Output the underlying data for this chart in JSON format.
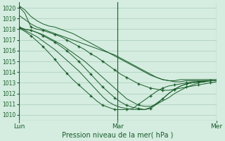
{
  "bg_color": "#d4ede0",
  "grid_color": "#a8cbb8",
  "line_color": "#1a5c2a",
  "marker_color": "#1a5c2a",
  "xlabel": "Pression niveau de la mer( hPa )",
  "xtick_labels": [
    "Lun",
    "Mar",
    "Mer"
  ],
  "xtick_positions": [
    0,
    24,
    48
  ],
  "ylim": [
    1009.5,
    1020.5
  ],
  "yticks": [
    1010,
    1011,
    1012,
    1013,
    1014,
    1015,
    1016,
    1017,
    1018,
    1019,
    1020
  ],
  "series": [
    [
      1020.2,
      1019.8,
      1019.2,
      1018.8,
      1018.5,
      1018.3,
      1018.2,
      1018.0,
      1017.8,
      1017.6,
      1017.3,
      1017.0,
      1016.7,
      1016.4,
      1016.1,
      1015.8,
      1015.5,
      1015.2,
      1014.9,
      1014.6,
      1014.3,
      1014.0,
      1013.7,
      1013.5,
      1013.3,
      1013.2,
      1013.2,
      1013.3,
      1013.3,
      1013.3,
      1013.3,
      1013.3,
      1013.3,
      1013.3
    ],
    [
      1019.3,
      1018.9,
      1018.5,
      1018.2,
      1018.0,
      1017.8,
      1017.6,
      1017.4,
      1017.2,
      1017.0,
      1016.8,
      1016.6,
      1016.4,
      1016.2,
      1016.0,
      1015.8,
      1015.6,
      1015.3,
      1015.0,
      1014.7,
      1014.4,
      1014.1,
      1013.8,
      1013.5,
      1013.3,
      1013.2,
      1013.1,
      1013.1,
      1013.2,
      1013.2,
      1013.2,
      1013.2,
      1013.2,
      1013.2
    ],
    [
      1020.1,
      1019.5,
      1018.2,
      1018.0,
      1017.9,
      1017.7,
      1017.5,
      1017.3,
      1017.0,
      1016.7,
      1016.4,
      1016.1,
      1015.7,
      1015.4,
      1015.0,
      1014.6,
      1014.2,
      1013.8,
      1013.5,
      1013.2,
      1012.9,
      1012.7,
      1012.5,
      1012.4,
      1012.3,
      1012.3,
      1012.4,
      1012.5,
      1012.6,
      1012.7,
      1012.8,
      1012.9,
      1013.0,
      1013.1
    ],
    [
      1018.2,
      1018.0,
      1017.9,
      1017.7,
      1017.5,
      1017.2,
      1016.9,
      1016.6,
      1016.2,
      1015.8,
      1015.4,
      1015.0,
      1014.5,
      1014.0,
      1013.5,
      1013.0,
      1012.5,
      1012.0,
      1011.5,
      1011.2,
      1010.9,
      1010.8,
      1010.8,
      1011.0,
      1011.3,
      1011.6,
      1012.0,
      1012.3,
      1012.6,
      1012.8,
      1013.0,
      1013.1,
      1013.2,
      1013.2
    ],
    [
      1018.2,
      1018.0,
      1017.9,
      1017.7,
      1017.4,
      1017.1,
      1016.8,
      1016.4,
      1016.0,
      1015.5,
      1015.0,
      1014.4,
      1013.8,
      1013.2,
      1012.6,
      1012.1,
      1011.6,
      1011.2,
      1010.9,
      1010.7,
      1010.6,
      1010.5,
      1010.6,
      1011.0,
      1011.5,
      1012.0,
      1012.4,
      1012.7,
      1012.9,
      1013.0,
      1013.1,
      1013.1,
      1013.2,
      1013.2
    ],
    [
      1018.2,
      1017.9,
      1017.6,
      1017.3,
      1016.9,
      1016.5,
      1016.1,
      1015.6,
      1015.1,
      1014.6,
      1014.1,
      1013.5,
      1012.9,
      1012.3,
      1011.7,
      1011.2,
      1010.9,
      1010.7,
      1010.6,
      1010.5,
      1010.5,
      1010.5,
      1010.7,
      1011.1,
      1011.5,
      1012.0,
      1012.4,
      1012.7,
      1012.9,
      1013.0,
      1013.1,
      1013.1,
      1013.2,
      1013.2
    ],
    [
      1018.1,
      1017.8,
      1017.4,
      1016.9,
      1016.4,
      1015.8,
      1015.2,
      1014.5,
      1013.9,
      1013.3,
      1012.8,
      1012.3,
      1011.8,
      1011.3,
      1010.9,
      1010.7,
      1010.5,
      1010.5,
      1010.5,
      1010.6,
      1011.0,
      1011.4,
      1011.8,
      1012.2,
      1012.5,
      1012.7,
      1012.8,
      1012.9,
      1013.0,
      1013.1,
      1013.1,
      1013.2,
      1013.2,
      1013.2
    ]
  ],
  "marker_series": [
    2,
    4,
    6
  ],
  "figsize": [
    3.2,
    2.0
  ],
  "dpi": 100
}
